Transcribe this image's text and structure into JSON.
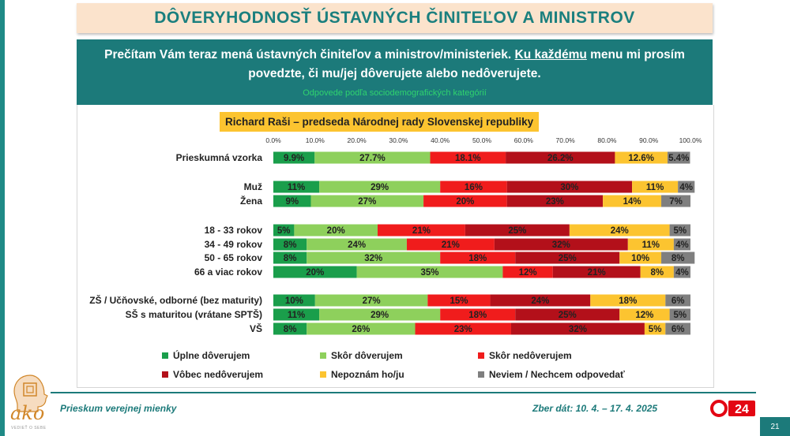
{
  "title": "DÔVERYHODNOSŤ ÚSTAVNÝCH ČINITEĽOV A MINISTROV",
  "intro": {
    "line1_a": "Prečítam Vám teraz mená ústavných činiteľov a ministrov/ministeriek. ",
    "line1_u": "Ku každému",
    "line1_b": " menu mi prosím",
    "line2": "povedzte, či mu/jej dôverujete alebo nedôverujete.",
    "sub": "Odpovede podľa sociodemografických kategórií"
  },
  "person": "Richard Raši – predseda Národnej rady Slovenskej republiky",
  "footer": {
    "left": "Prieskum verejnej mienky",
    "right": "Zber dát: 10. 4. – 17. 4. 2025",
    "page": "21",
    "logo": "ako",
    "logo_tagline": "VEDIEŤ O SEBE",
    "tv": "24"
  },
  "colors": {
    "c1": "#1a9e4b",
    "c2": "#8ed05c",
    "c3": "#f01c1c",
    "c4": "#b3101a",
    "c5": "#fcc430",
    "c6": "#7f7f7f"
  },
  "chart_data": {
    "type": "bar",
    "orientation": "horizontal-stacked-100",
    "xlim": [
      0,
      100
    ],
    "x_ticks": [
      "0.0%",
      "10.0%",
      "20.0%",
      "30.0%",
      "40.0%",
      "50.0%",
      "60.0%",
      "70.0%",
      "80.0%",
      "90.0%",
      "100.0%"
    ],
    "categories": [
      "Prieskumná vzorka",
      "Muž",
      "Žena",
      "18 - 33 rokov",
      "34 - 49 rokov",
      "50 - 65 rokov",
      "66 a viac rokov",
      "ZŠ / Učňovské, odborné (bez maturity)",
      "SŠ s maturitou (vrátane SPTŠ)",
      "VŠ"
    ],
    "series": [
      {
        "name": "Úplne dôverujem",
        "values": [
          9.9,
          11,
          9,
          5,
          8,
          8,
          20,
          10,
          11,
          8
        ],
        "labels": [
          "9.9%",
          "11%",
          "9%",
          "5%",
          "8%",
          "8%",
          "20%",
          "10%",
          "11%",
          "8%"
        ]
      },
      {
        "name": "Skôr dôverujem",
        "values": [
          27.7,
          29,
          27,
          20,
          24,
          32,
          35,
          27,
          29,
          26
        ],
        "labels": [
          "27.7%",
          "29%",
          "27%",
          "20%",
          "24%",
          "32%",
          "35%",
          "27%",
          "29%",
          "26%"
        ]
      },
      {
        "name": "Skôr nedôverujem",
        "values": [
          18.1,
          16,
          20,
          21,
          21,
          18,
          12,
          15,
          18,
          23
        ],
        "labels": [
          "18.1%",
          "16%",
          "20%",
          "21%",
          "21%",
          "18%",
          "12%",
          "15%",
          "18%",
          "23%"
        ]
      },
      {
        "name": "Vôbec nedôverujem",
        "values": [
          26.2,
          30,
          23,
          25,
          32,
          25,
          21,
          24,
          25,
          32
        ],
        "labels": [
          "26.2%",
          "30%",
          "23%",
          "25%",
          "32%",
          "25%",
          "21%",
          "24%",
          "25%",
          "32%"
        ]
      },
      {
        "name": "Nepoznám ho/ju",
        "values": [
          12.6,
          11,
          14,
          24,
          11,
          10,
          8,
          18,
          12,
          5
        ],
        "labels": [
          "12.6%",
          "11%",
          "14%",
          "24%",
          "11%",
          "10%",
          "8%",
          "18%",
          "12%",
          "5%"
        ]
      },
      {
        "name": "Neviem / Nechcem odpovedať",
        "values": [
          5.4,
          4,
          7,
          5,
          4,
          8,
          4,
          6,
          5,
          6
        ],
        "labels": [
          "5.4%",
          "4%",
          "7%",
          "5%",
          "4%",
          "8%",
          "4%",
          "6%",
          "5%",
          "6%"
        ]
      }
    ],
    "legend_placement": "bottom",
    "grid": false
  }
}
